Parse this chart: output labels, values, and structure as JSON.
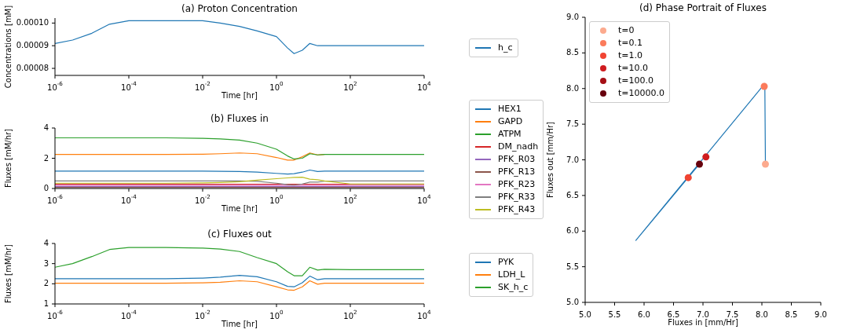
{
  "chart_data": [
    {
      "type": "line",
      "title": "(a) Proton Concentration",
      "xlabel": "Time [hr]",
      "ylabel": "Concentrations [mM]",
      "log": "x",
      "legend": "right",
      "x": [
        1e-06,
        3e-06,
        1e-05,
        3e-05,
        0.0001,
        0.001,
        0.01,
        0.03,
        0.1,
        0.3,
        1,
        2,
        3,
        5,
        8,
        13,
        20,
        100,
        10000
      ],
      "series": [
        {
          "name": "h_c",
          "color": "#1f77b4",
          "values": [
            9.1e-05,
            9.25e-05,
            9.55e-05,
            9.95e-05,
            0.000101,
            0.000101,
            0.000101,
            0.0001,
            9.85e-05,
            9.65e-05,
            9.4e-05,
            8.9e-05,
            8.65e-05,
            8.8e-05,
            9.1e-05,
            9e-05,
            9e-05,
            9e-05,
            9e-05
          ]
        }
      ],
      "xlim": [
        1e-06,
        10000
      ],
      "xticks": [
        {
          "value": 1e-06,
          "label": "10$^{-6}$"
        },
        {
          "value": 0.0001,
          "label": "10$^{-4}$"
        },
        {
          "value": 0.01,
          "label": "10$^{-2}$"
        },
        {
          "value": 1,
          "label": "10$^{0}$"
        },
        {
          "value": 100,
          "label": "10$^{2}$"
        },
        {
          "value": 10000,
          "label": "10$^{4}$"
        }
      ],
      "ylim": [
        7.69e-05,
        0.0001022
      ],
      "yticks": [
        {
          "value": 8e-05,
          "label": "0.00008"
        },
        {
          "value": 9e-05,
          "label": "0.00009"
        },
        {
          "value": 0.0001,
          "label": "0.00010"
        }
      ]
    },
    {
      "type": "line",
      "title": "(b) Fluxes in",
      "xlabel": "Time [hr]",
      "ylabel": "Fluxes [mM/hr]",
      "log": "x",
      "legend": "right",
      "x": [
        1e-06,
        3e-06,
        1e-05,
        3e-05,
        0.0001,
        0.001,
        0.01,
        0.03,
        0.1,
        0.3,
        1,
        2,
        3,
        5,
        8,
        13,
        20,
        100,
        10000
      ],
      "series": [
        {
          "name": "HEX1",
          "color": "#1f77b4",
          "values": [
            1.15,
            1.15,
            1.15,
            1.15,
            1.15,
            1.15,
            1.15,
            1.14,
            1.12,
            1.08,
            1.0,
            0.95,
            0.98,
            1.08,
            1.22,
            1.12,
            1.15,
            1.15,
            1.15
          ]
        },
        {
          "name": "GAPD",
          "color": "#ff7f0e",
          "values": [
            2.25,
            2.25,
            2.25,
            2.25,
            2.25,
            2.25,
            2.27,
            2.3,
            2.35,
            2.3,
            2.05,
            1.88,
            1.88,
            2.1,
            2.35,
            2.22,
            2.25,
            null,
            null
          ]
        },
        {
          "name": "ATPM",
          "color": "#2ca02c",
          "values": [
            3.35,
            3.35,
            3.35,
            3.35,
            3.35,
            3.35,
            3.32,
            3.28,
            3.2,
            3.0,
            2.6,
            2.15,
            1.95,
            2.0,
            2.3,
            2.22,
            2.25,
            2.25,
            2.25
          ]
        },
        {
          "name": "DM_nadh",
          "color": "#d62728",
          "values": [
            0.28,
            0.28,
            0.28,
            0.28,
            0.28,
            0.28,
            0.28,
            0.28,
            0.28,
            0.28,
            0.28,
            0.28,
            0.28,
            0.28,
            0.28,
            0.28,
            0.28,
            0.28,
            0.28
          ]
        },
        {
          "name": "PFK_R03",
          "color": "#9467bd",
          "values": [
            0.14,
            0.14,
            0.14,
            0.14,
            0.14,
            0.14,
            0.14,
            0.14,
            0.14,
            0.14,
            0.14,
            0.14,
            0.14,
            0.14,
            0.14,
            0.14,
            0.14,
            0.14,
            0.14
          ]
        },
        {
          "name": "PFK_R13",
          "color": "#8c564b",
          "values": [
            0.07,
            0.07,
            0.07,
            0.07,
            0.07,
            0.07,
            0.07,
            0.07,
            0.07,
            0.07,
            0.07,
            0.07,
            0.07,
            0.07,
            0.07,
            0.07,
            0.07,
            0.07,
            0.07
          ]
        },
        {
          "name": "PFK_R23",
          "color": "#e377c2",
          "values": [
            0.21,
            0.21,
            0.21,
            0.21,
            0.21,
            0.21,
            0.21,
            0.21,
            0.21,
            0.21,
            0.21,
            0.21,
            0.21,
            0.21,
            0.21,
            0.21,
            0.21,
            0.21,
            0.21
          ]
        },
        {
          "name": "PFK_R33",
          "color": "#7f7f7f",
          "values": [
            0.5,
            0.5,
            0.5,
            0.5,
            0.5,
            0.5,
            0.5,
            0.5,
            0.5,
            0.47,
            0.35,
            0.25,
            0.22,
            0.3,
            0.42,
            0.42,
            0.48,
            0.5,
            0.5
          ]
        },
        {
          "name": "PFK_R43",
          "color": "#bcbd22",
          "values": [
            0.35,
            0.35,
            0.35,
            0.35,
            0.35,
            0.35,
            0.37,
            0.4,
            0.45,
            0.55,
            0.65,
            0.7,
            0.73,
            0.75,
            0.62,
            0.58,
            0.5,
            0.3,
            0.3
          ]
        }
      ],
      "xlim": [
        1e-06,
        10000
      ],
      "xticks": [
        {
          "value": 1e-06,
          "label": "10$^{-6}$"
        },
        {
          "value": 0.0001,
          "label": "10$^{-4}$"
        },
        {
          "value": 0.01,
          "label": "10$^{-2}$"
        },
        {
          "value": 1,
          "label": "10$^{0}$"
        },
        {
          "value": 100,
          "label": "10$^{2}$"
        },
        {
          "value": 10000,
          "label": "10$^{4}$"
        }
      ],
      "ylim": [
        0,
        4
      ],
      "yticks": [
        0,
        2,
        4
      ]
    },
    {
      "type": "line",
      "title": "(c) Fluxes out",
      "xlabel": "Time [hr]",
      "ylabel": "Fluxes [mM/hr]",
      "log": "x",
      "legend": "right",
      "x": [
        1e-06,
        3e-06,
        1e-05,
        3e-05,
        0.0001,
        0.001,
        0.01,
        0.03,
        0.1,
        0.3,
        1,
        2,
        3,
        5,
        8,
        13,
        20,
        100,
        10000
      ],
      "series": [
        {
          "name": "PYK",
          "color": "#1f77b4",
          "values": [
            2.25,
            2.25,
            2.25,
            2.25,
            2.25,
            2.25,
            2.28,
            2.33,
            2.42,
            2.35,
            2.1,
            1.87,
            1.85,
            2.05,
            2.38,
            2.2,
            2.25,
            2.25,
            2.25
          ]
        },
        {
          "name": "LDH_L",
          "color": "#ff7f0e",
          "values": [
            2.03,
            2.03,
            2.03,
            2.03,
            2.03,
            2.03,
            2.05,
            2.08,
            2.15,
            2.1,
            1.85,
            1.7,
            1.68,
            1.85,
            2.15,
            1.98,
            2.03,
            2.03,
            2.03
          ]
        },
        {
          "name": "SK_h_c",
          "color": "#2ca02c",
          "values": [
            2.82,
            3.0,
            3.35,
            3.7,
            3.8,
            3.8,
            3.77,
            3.72,
            3.6,
            3.3,
            3.0,
            2.6,
            2.4,
            2.4,
            2.82,
            2.68,
            2.72,
            2.7,
            2.7
          ]
        }
      ],
      "xlim": [
        1e-06,
        10000
      ],
      "xticks": [
        {
          "value": 1e-06,
          "label": "10$^{-6}$"
        },
        {
          "value": 0.0001,
          "label": "10$^{-4}$"
        },
        {
          "value": 0.01,
          "label": "10$^{-2}$"
        },
        {
          "value": 1,
          "label": "10$^{0}$"
        },
        {
          "value": 100,
          "label": "10$^{2}$"
        },
        {
          "value": 10000,
          "label": "10$^{4}$"
        }
      ],
      "ylim": [
        1,
        4
      ],
      "yticks": [
        1,
        2,
        3,
        4
      ]
    },
    {
      "type": "scatter",
      "title": "(d) Phase Portrait of Fluxes",
      "xlabel": "Fluxes in [mm/Hr]",
      "ylabel": "Fluxes out [mm/Hr]",
      "legend": "top left",
      "series": [
        {
          "type": "line",
          "color": "#1f77b4",
          "x": [
            8.06,
            8.05,
            5.86,
            6.94
          ],
          "values": [
            6.94,
            8.07,
            5.87,
            6.94
          ]
        },
        {
          "name": "t=0",
          "color": "#fcaa8e",
          "x": [
            8.06
          ],
          "values": [
            6.94
          ]
        },
        {
          "name": "t=0.1",
          "color": "#fb7b5b",
          "x": [
            8.04
          ],
          "values": [
            8.03
          ]
        },
        {
          "name": "t=1.0",
          "color": "#f14432",
          "x": [
            6.75
          ],
          "values": [
            6.75
          ]
        },
        {
          "name": "t=10.0",
          "color": "#cf1c1f",
          "x": [
            7.05
          ],
          "values": [
            7.04
          ]
        },
        {
          "name": "t=100.0",
          "color": "#a50f15",
          "x": [
            null
          ],
          "values": [
            null
          ]
        },
        {
          "name": "t=10000.0",
          "color": "#67000d",
          "x": [
            6.94
          ],
          "values": [
            6.94
          ]
        }
      ],
      "xlim": [
        5,
        9
      ],
      "xticks": [
        {
          "value": 5,
          "label": "5.0"
        },
        {
          "value": 5.5,
          "label": "5.5"
        },
        {
          "value": 6,
          "label": "6.0"
        },
        {
          "value": 6.5,
          "label": "6.5"
        },
        {
          "value": 7,
          "label": "7.0"
        },
        {
          "value": 7.5,
          "label": "7.5"
        },
        {
          "value": 8,
          "label": "8.0"
        },
        {
          "value": 8.5,
          "label": "8.5"
        },
        {
          "value": 9,
          "label": "9.0"
        }
      ],
      "ylim": [
        5,
        9
      ],
      "yticks": [
        {
          "value": 5,
          "label": "5.0"
        },
        {
          "value": 5.5,
          "label": "5.5"
        },
        {
          "value": 6,
          "label": "6.0"
        },
        {
          "value": 6.5,
          "label": "6.5"
        },
        {
          "value": 7,
          "label": "7.0"
        },
        {
          "value": 7.5,
          "label": "7.5"
        },
        {
          "value": 8,
          "label": "8.0"
        },
        {
          "value": 8.5,
          "label": "8.5"
        },
        {
          "value": 9,
          "label": "9.0"
        }
      ]
    }
  ]
}
